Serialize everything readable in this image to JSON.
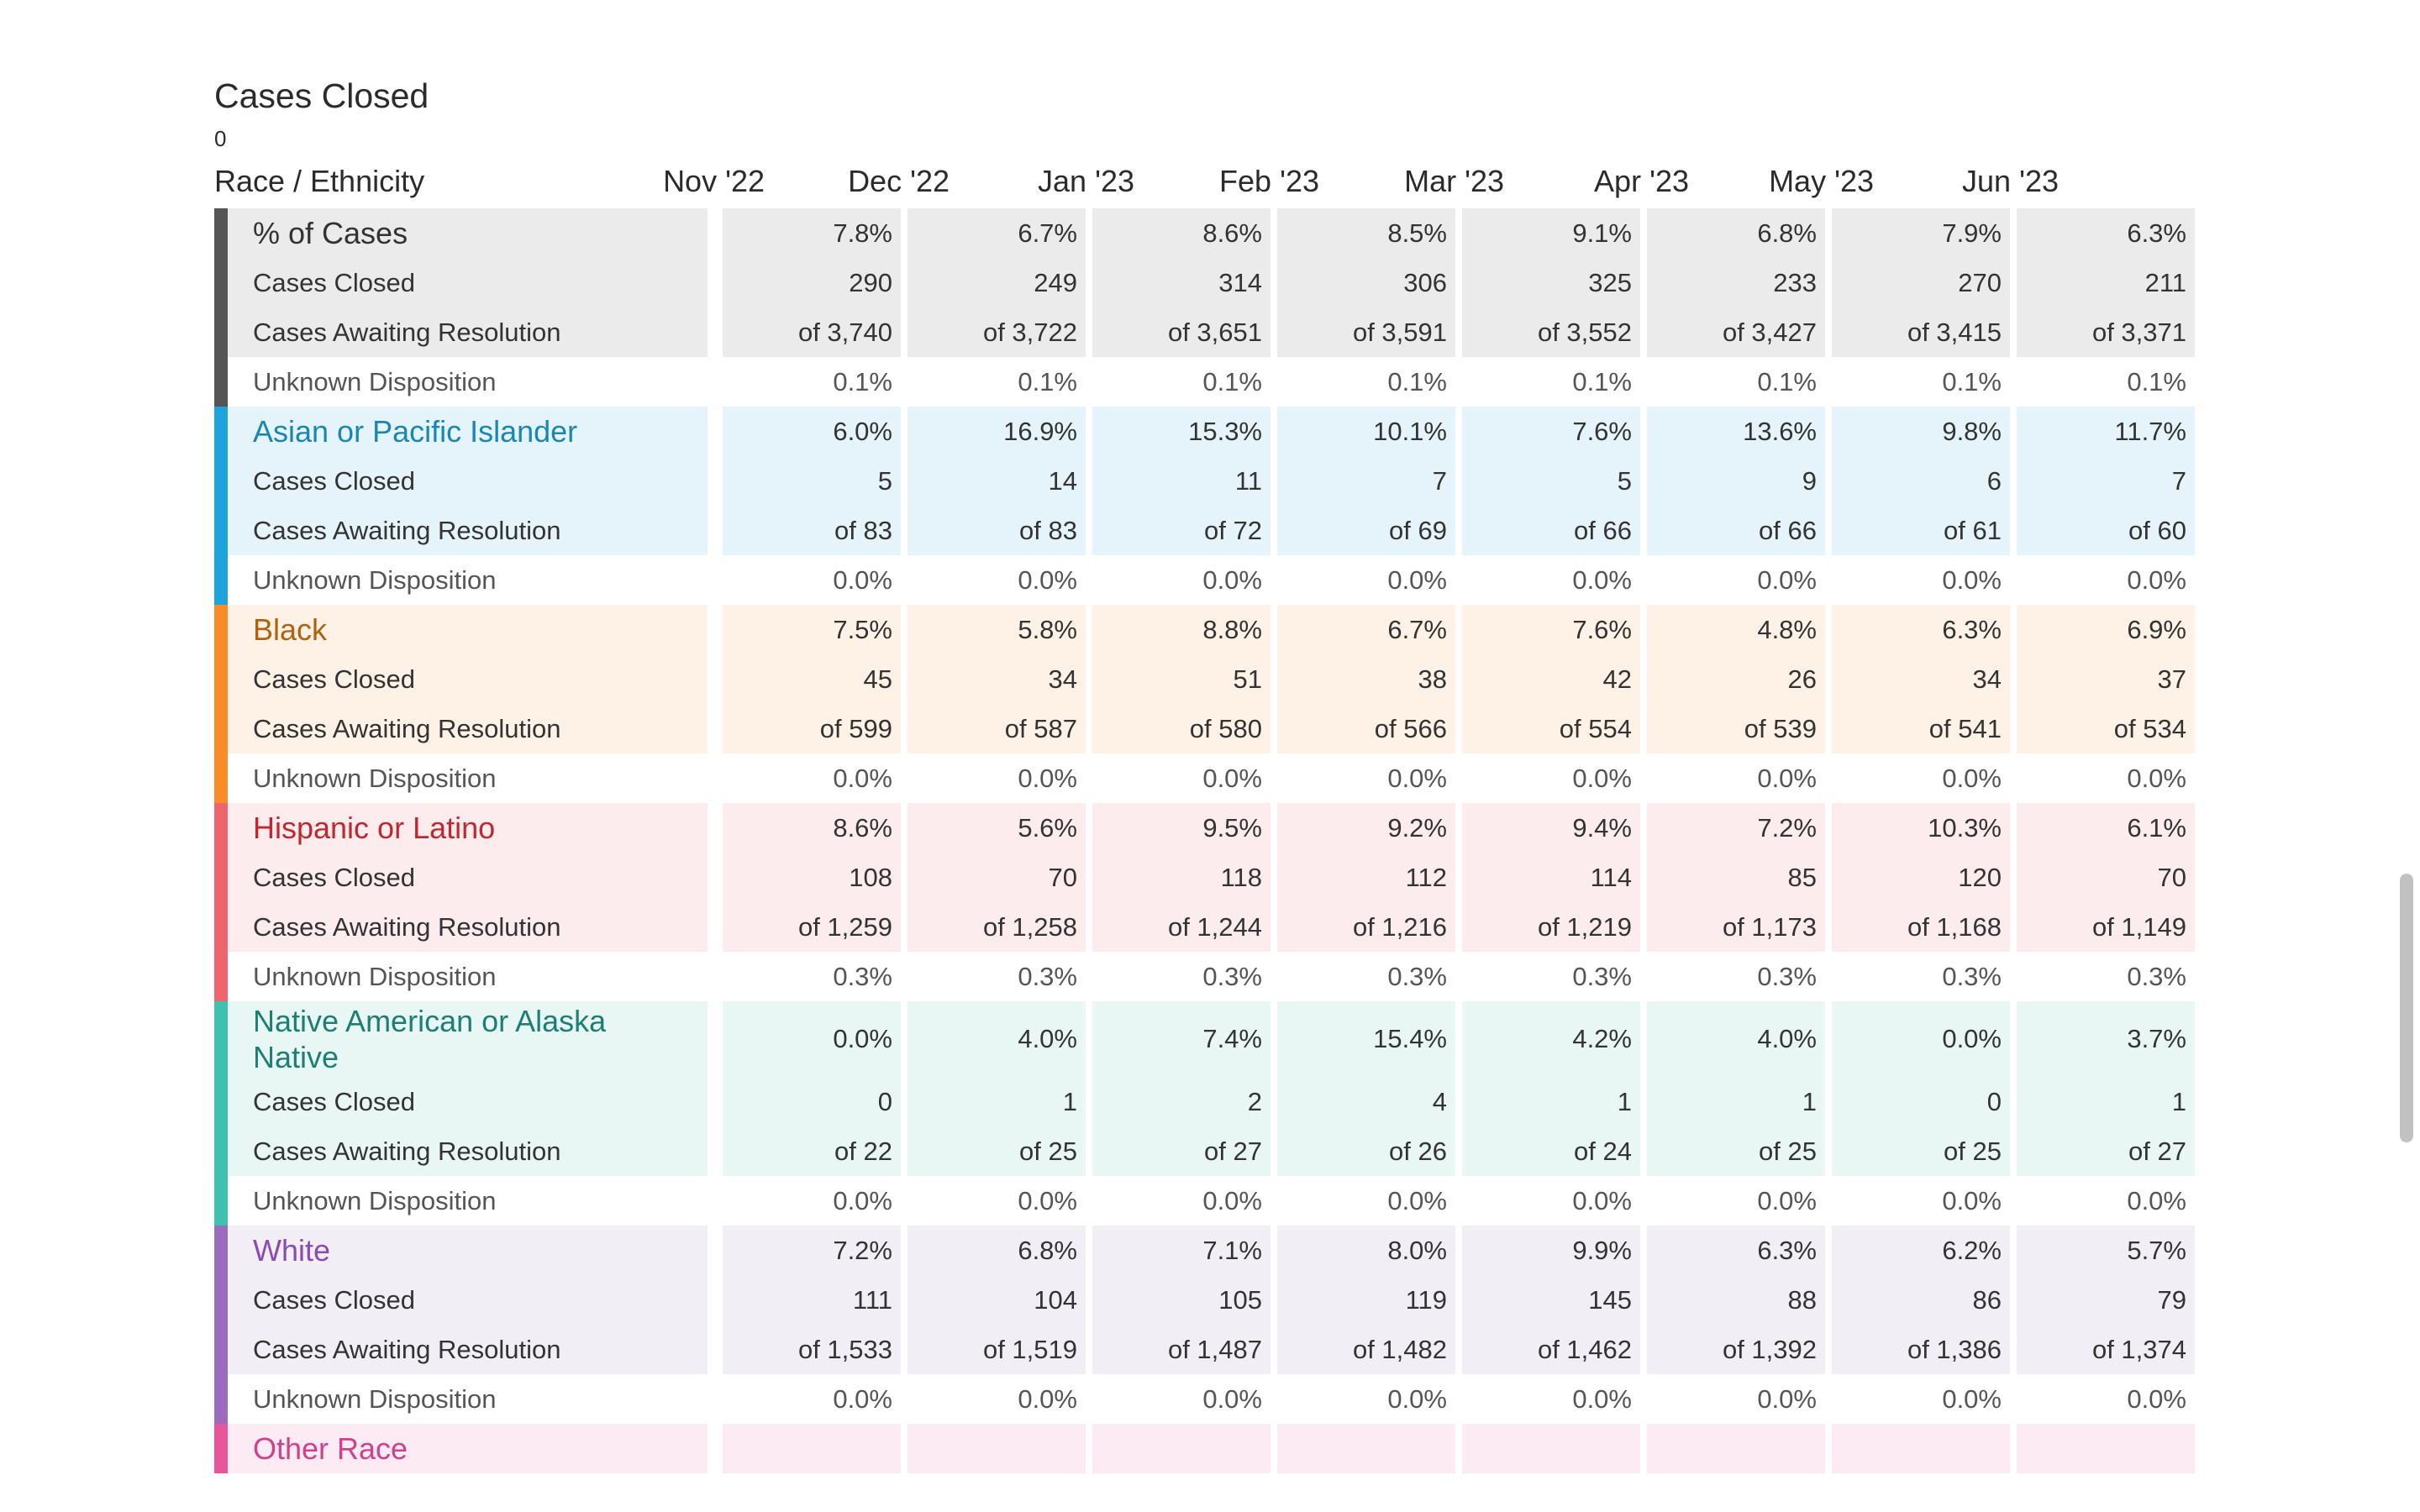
{
  "title": "Cases Closed",
  "subtitle": "0",
  "header": {
    "label": "Race / Ethnicity",
    "months": [
      "Nov '22",
      "Dec '22",
      "Jan '23",
      "Feb '23",
      "Mar '23",
      "Apr '23",
      "May '23",
      "Jun '23"
    ]
  },
  "row_labels": {
    "closed": "Cases Closed",
    "awaiting": "Cases Awaiting Resolution",
    "unknown": "Unknown Disposition"
  },
  "groups": [
    {
      "name": "% of Cases",
      "bar_color": "#555555",
      "bg_color": "#ebebeb",
      "name_color": "#333333",
      "pct": [
        "7.8%",
        "6.7%",
        "8.6%",
        "8.5%",
        "9.1%",
        "6.8%",
        "7.9%",
        "6.3%"
      ],
      "closed": [
        "290",
        "249",
        "314",
        "306",
        "325",
        "233",
        "270",
        "211"
      ],
      "awaiting": [
        "of 3,740",
        "of 3,722",
        "of 3,651",
        "of 3,591",
        "of 3,552",
        "of 3,427",
        "of 3,415",
        "of 3,371"
      ],
      "unknown": [
        "0.1%",
        "0.1%",
        "0.1%",
        "0.1%",
        "0.1%",
        "0.1%",
        "0.1%",
        "0.1%"
      ]
    },
    {
      "name": "Asian or Pacific Islander",
      "bar_color": "#1fa3dc",
      "bg_color": "#e5f4fb",
      "name_color": "#1a86b5",
      "pct": [
        "6.0%",
        "16.9%",
        "15.3%",
        "10.1%",
        "7.6%",
        "13.6%",
        "9.8%",
        "11.7%"
      ],
      "closed": [
        "5",
        "14",
        "11",
        "7",
        "5",
        "9",
        "6",
        "7"
      ],
      "awaiting": [
        "of 83",
        "of 83",
        "of 72",
        "of 69",
        "of 66",
        "of 66",
        "of 61",
        "of 60"
      ],
      "unknown": [
        "0.0%",
        "0.0%",
        "0.0%",
        "0.0%",
        "0.0%",
        "0.0%",
        "0.0%",
        "0.0%"
      ]
    },
    {
      "name": "Black",
      "bar_color": "#f98c28",
      "bg_color": "#fef2e6",
      "name_color": "#b0620f",
      "pct": [
        "7.5%",
        "5.8%",
        "8.8%",
        "6.7%",
        "7.6%",
        "4.8%",
        "6.3%",
        "6.9%"
      ],
      "closed": [
        "45",
        "34",
        "51",
        "38",
        "42",
        "26",
        "34",
        "37"
      ],
      "awaiting": [
        "of 599",
        "of 587",
        "of 580",
        "of 566",
        "of 554",
        "of 539",
        "of 541",
        "of 534"
      ],
      "unknown": [
        "0.0%",
        "0.0%",
        "0.0%",
        "0.0%",
        "0.0%",
        "0.0%",
        "0.0%",
        "0.0%"
      ]
    },
    {
      "name": "Hispanic or Latino",
      "bar_color": "#f0646e",
      "bg_color": "#fdecee",
      "name_color": "#c0272f",
      "pct": [
        "8.6%",
        "5.6%",
        "9.5%",
        "9.2%",
        "9.4%",
        "7.2%",
        "10.3%",
        "6.1%"
      ],
      "closed": [
        "108",
        "70",
        "118",
        "112",
        "114",
        "85",
        "120",
        "70"
      ],
      "awaiting": [
        "of 1,259",
        "of 1,258",
        "of 1,244",
        "of 1,216",
        "of 1,219",
        "of 1,173",
        "of 1,168",
        "of 1,149"
      ],
      "unknown": [
        "0.3%",
        "0.3%",
        "0.3%",
        "0.3%",
        "0.3%",
        "0.3%",
        "0.3%",
        "0.3%"
      ]
    },
    {
      "name": "Native American or Alaska Native",
      "bar_color": "#3fc1b0",
      "bg_color": "#e8f7f4",
      "name_color": "#1d7f74",
      "pct": [
        "0.0%",
        "4.0%",
        "7.4%",
        "15.4%",
        "4.2%",
        "4.0%",
        "0.0%",
        "3.7%"
      ],
      "closed": [
        "0",
        "1",
        "2",
        "4",
        "1",
        "1",
        "0",
        "1"
      ],
      "awaiting": [
        "of 22",
        "of 25",
        "of 27",
        "of 26",
        "of 24",
        "of 25",
        "of 25",
        "of 27"
      ],
      "unknown": [
        "0.0%",
        "0.0%",
        "0.0%",
        "0.0%",
        "0.0%",
        "0.0%",
        "0.0%",
        "0.0%"
      ]
    },
    {
      "name": "White",
      "bar_color": "#9b6bbf",
      "bg_color": "#f2eef6",
      "name_color": "#8a4bb3",
      "pct": [
        "7.2%",
        "6.8%",
        "7.1%",
        "8.0%",
        "9.9%",
        "6.3%",
        "6.2%",
        "5.7%"
      ],
      "closed": [
        "111",
        "104",
        "105",
        "119",
        "145",
        "88",
        "86",
        "79"
      ],
      "awaiting": [
        "of 1,533",
        "of 1,519",
        "of 1,487",
        "of 1,482",
        "of 1,462",
        "of 1,392",
        "of 1,386",
        "of 1,374"
      ],
      "unknown": [
        "0.0%",
        "0.0%",
        "0.0%",
        "0.0%",
        "0.0%",
        "0.0%",
        "0.0%",
        "0.0%"
      ]
    },
    {
      "name": "Other Race",
      "bar_color": "#e8559b",
      "bg_color": "#fdebf3",
      "name_color": "#d1408a",
      "pct": [],
      "closed": [],
      "awaiting": [],
      "unknown": []
    }
  ]
}
